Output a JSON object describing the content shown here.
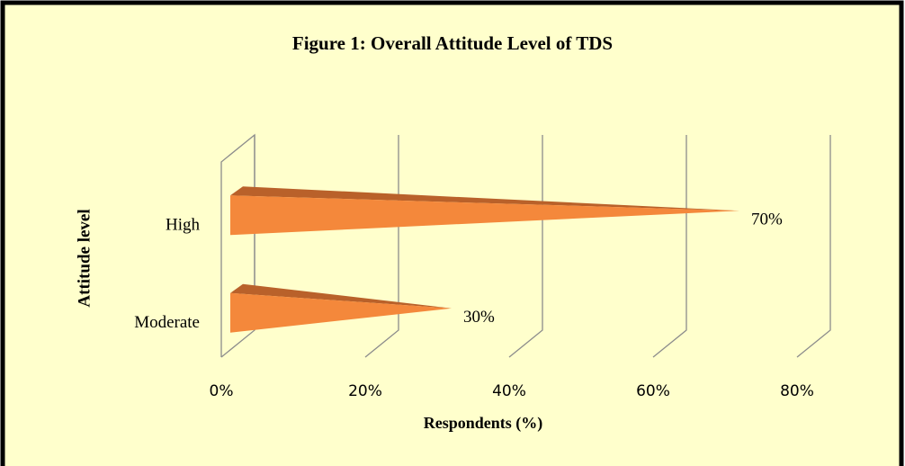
{
  "chart_data": {
    "type": "cone-bar-horizontal",
    "title": "Figure 1: Overall Attitude Level of TDS",
    "x_label": "Respondents (%)",
    "y_label": "Attitude level",
    "categories": [
      "High",
      "Moderate"
    ],
    "values": [
      70,
      30
    ],
    "value_labels": [
      "70%",
      "30%"
    ],
    "color": "#f4883b",
    "top_color": "#b9612a",
    "xlim": [
      0,
      80
    ],
    "xticks": [
      {
        "value": 0,
        "label": "0%"
      },
      {
        "value": 20,
        "label": "20%"
      },
      {
        "value": 40,
        "label": "40%"
      },
      {
        "value": 60,
        "label": "60%"
      },
      {
        "value": 80,
        "label": "80%"
      }
    ],
    "grid": true
  }
}
